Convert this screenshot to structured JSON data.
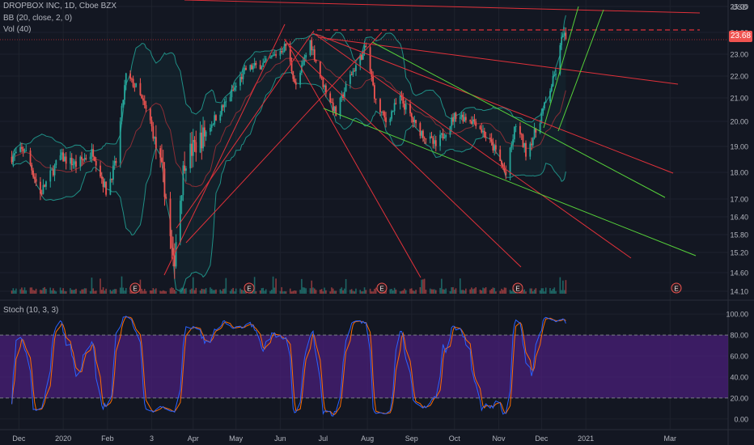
{
  "header": {
    "symbol_line": "DROPBOX INC, 1D, Cboe BZX",
    "bb_label": "BB (20, close, 2, 0)",
    "vol_label": "Vol (40)",
    "stoch_label": "Stoch (10, 3, 3)",
    "currency": "USD"
  },
  "last_price": "23.68",
  "colors": {
    "background": "#131722",
    "grid": "#1e222d",
    "up": "#26a69a",
    "down": "#ef5350",
    "trend_red": "#e0313a",
    "trend_green": "#56d13a",
    "bb_band": "#1f8f86",
    "stoch_k": "#2962ff",
    "stoch_d": "#ff6d00",
    "stoch_fill": "#4a1f7a",
    "earnings": "#ef5350"
  },
  "chart_data": [
    {
      "type": "candlestick",
      "title": "DROPBOX INC, 1D, Cboe BZX",
      "x_ticks": [
        "Dec",
        "2020",
        "Feb",
        "3",
        "Apr",
        "May",
        "Jun",
        "Jul",
        "Aug",
        "Sep",
        "Oct",
        "Nov",
        "Dec",
        "2021",
        "Mar"
      ],
      "y_ticks": [
        "25.00",
        "24.00",
        "23.00",
        "22.00",
        "21.00",
        "20.00",
        "19.00",
        "18.00",
        "17.00",
        "16.40",
        "15.80",
        "15.20",
        "14.60",
        "14.10"
      ],
      "ylim": [
        13.9,
        25.2
      ],
      "last_price": 23.68,
      "earnings_markers": [
        "E",
        "E",
        "E",
        "E",
        "E"
      ],
      "anchors": [
        [
          "2019-11-26",
          18.6
        ],
        [
          "2019-12-05",
          18.9
        ],
        [
          "2019-12-16",
          17.2
        ],
        [
          "2019-12-30",
          18.6
        ],
        [
          "2020-01-10",
          18.3
        ],
        [
          "2020-01-22",
          18.8
        ],
        [
          "2020-01-31",
          17.3
        ],
        [
          "2020-02-07",
          18.4
        ],
        [
          "2020-02-14",
          22.0
        ],
        [
          "2020-02-21",
          21.5
        ],
        [
          "2020-03-02",
          20.0
        ],
        [
          "2020-03-12",
          17.5
        ],
        [
          "2020-03-18",
          14.7
        ],
        [
          "2020-03-26",
          18.5
        ],
        [
          "2020-04-09",
          19.5
        ],
        [
          "2020-04-24",
          20.8
        ],
        [
          "2020-05-08",
          22.3
        ],
        [
          "2020-05-22",
          22.6
        ],
        [
          "2020-06-05",
          23.4
        ],
        [
          "2020-06-12",
          21.5
        ],
        [
          "2020-06-22",
          23.6
        ],
        [
          "2020-06-30",
          21.8
        ],
        [
          "2020-07-10",
          20.3
        ],
        [
          "2020-07-20",
          22.0
        ],
        [
          "2020-07-31",
          23.3
        ],
        [
          "2020-08-07",
          20.8
        ],
        [
          "2020-08-14",
          20.0
        ],
        [
          "2020-08-24",
          21.0
        ],
        [
          "2020-09-04",
          19.8
        ],
        [
          "2020-09-18",
          19.0
        ],
        [
          "2020-10-02",
          20.3
        ],
        [
          "2020-10-16",
          20.0
        ],
        [
          "2020-10-30",
          18.8
        ],
        [
          "2020-11-06",
          17.9
        ],
        [
          "2020-11-13",
          19.9
        ],
        [
          "2020-11-20",
          18.8
        ],
        [
          "2020-11-27",
          19.6
        ],
        [
          "2020-12-04",
          20.8
        ],
        [
          "2020-12-11",
          22.2
        ],
        [
          "2020-12-16",
          24.0
        ],
        [
          "2020-12-18",
          23.68
        ]
      ],
      "bollinger": {
        "period": 20,
        "source": "close",
        "stddev": 2,
        "offset": 0
      },
      "volume": {
        "ma_length": 40
      }
    },
    {
      "type": "line",
      "title": "Stoch (10, 3, 3)",
      "y_ticks": [
        "100.00",
        "80.00",
        "60.00",
        "40.00",
        "20.00",
        "0.00"
      ],
      "ylim": [
        -4,
        104
      ],
      "bands": [
        20,
        80
      ],
      "series": [
        {
          "name": "%K",
          "color": "#2962ff"
        },
        {
          "name": "%D",
          "color": "#ff6d00"
        }
      ]
    }
  ]
}
